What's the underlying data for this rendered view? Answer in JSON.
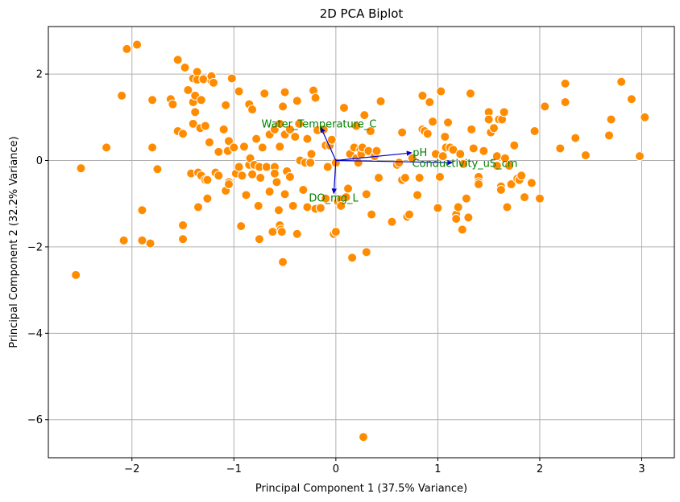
{
  "chart_data": {
    "type": "scatter",
    "title": "2D PCA Biplot",
    "xlabel": "Principal Component 1 (37.5% Variance)",
    "ylabel": "Principal Component 2 (32.2% Variance)",
    "xlim": [
      -2.82,
      3.32
    ],
    "ylim": [
      -6.88,
      3.1
    ],
    "xticks": [
      -2,
      -1,
      0,
      1,
      2,
      3
    ],
    "yticks": [
      -6,
      -4,
      -2,
      0,
      2
    ],
    "grid": true,
    "point_color": "#ff8c00",
    "arrow_color": "#0000cd",
    "label_color": "#008000",
    "loadings": [
      {
        "name": "Water_Temperature_C",
        "x": -0.15,
        "y": 0.78
      },
      {
        "name": "pH",
        "x": 0.75,
        "y": 0.18
      },
      {
        "name": "Conductivity_uS_cm",
        "x": 1.15,
        "y": -0.05
      },
      {
        "name": "DO_mg_L",
        "x": -0.02,
        "y": -0.78
      }
    ],
    "points": [
      [
        -2.55,
        -2.65
      ],
      [
        -2.5,
        -0.18
      ],
      [
        -2.25,
        0.3
      ],
      [
        -2.1,
        1.5
      ],
      [
        -2.08,
        -1.85
      ],
      [
        -2.05,
        2.58
      ],
      [
        -1.95,
        2.68
      ],
      [
        -1.9,
        -1.15
      ],
      [
        -1.9,
        -1.85
      ],
      [
        -1.82,
        -1.92
      ],
      [
        -1.8,
        0.3
      ],
      [
        -1.8,
        1.4
      ],
      [
        -1.75,
        -0.2
      ],
      [
        -1.62,
        1.42
      ],
      [
        -1.6,
        1.3
      ],
      [
        -1.55,
        2.33
      ],
      [
        -1.55,
        0.68
      ],
      [
        -1.5,
        -1.5
      ],
      [
        -1.5,
        -1.82
      ],
      [
        -1.5,
        0.62
      ],
      [
        -1.48,
        2.15
      ],
      [
        -1.45,
        1.63
      ],
      [
        -1.42,
        -0.3
      ],
      [
        -1.4,
        1.9
      ],
      [
        -1.4,
        0.85
      ],
      [
        -1.4,
        1.35
      ],
      [
        -1.38,
        1.5
      ],
      [
        -1.38,
        1.12
      ],
      [
        -1.36,
        2.05
      ],
      [
        -1.36,
        1.87
      ],
      [
        -1.35,
        -0.28
      ],
      [
        -1.35,
        -1.08
      ],
      [
        -1.33,
        0.75
      ],
      [
        -1.32,
        -0.35
      ],
      [
        -1.32,
        1.4
      ],
      [
        -1.3,
        1.88
      ],
      [
        -1.28,
        0.8
      ],
      [
        -1.28,
        -0.45
      ],
      [
        -1.26,
        -0.45
      ],
      [
        -1.26,
        -0.88
      ],
      [
        -1.24,
        0.42
      ],
      [
        -1.22,
        1.84
      ],
      [
        -1.22,
        1.95
      ],
      [
        -1.2,
        1.8
      ],
      [
        -1.18,
        -0.28
      ],
      [
        -1.15,
        0.2
      ],
      [
        -1.15,
        -0.35
      ],
      [
        -1.1,
        0.72
      ],
      [
        -1.08,
        1.28
      ],
      [
        -1.08,
        -0.7
      ],
      [
        -1.06,
        0.22
      ],
      [
        -1.05,
        -0.5
      ],
      [
        -1.05,
        -0.55
      ],
      [
        -1.05,
        0.45
      ],
      [
        -1.02,
        1.9
      ],
      [
        -1,
        0.3
      ],
      [
        -0.98,
        -0.3
      ],
      [
        -0.95,
        -0.15
      ],
      [
        -0.95,
        1.6
      ],
      [
        -0.93,
        -1.52
      ],
      [
        -0.92,
        -0.35
      ],
      [
        -0.9,
        0.32
      ],
      [
        -0.88,
        -0.8
      ],
      [
        -0.85,
        -0.1
      ],
      [
        -0.85,
        1.3
      ],
      [
        -0.84,
        0.05
      ],
      [
        -0.82,
        -0.32
      ],
      [
        -0.82,
        1.18
      ],
      [
        -0.8,
        -0.1
      ],
      [
        -0.78,
        0.5
      ],
      [
        -0.76,
        -1.05
      ],
      [
        -0.75,
        -1.82
      ],
      [
        -0.75,
        -0.15
      ],
      [
        -0.74,
        -0.4
      ],
      [
        -0.72,
        0.3
      ],
      [
        -0.7,
        1.55
      ],
      [
        -0.68,
        -0.15
      ],
      [
        -0.65,
        -0.72
      ],
      [
        -0.65,
        0.6
      ],
      [
        -0.62,
        -1.65
      ],
      [
        -0.6,
        -0.15
      ],
      [
        -0.6,
        -0.3
      ],
      [
        -0.6,
        0.72
      ],
      [
        -0.58,
        -0.5
      ],
      [
        -0.56,
        -1.15
      ],
      [
        -0.55,
        -1.5
      ],
      [
        -0.55,
        0.85
      ],
      [
        -0.55,
        0.32
      ],
      [
        -0.54,
        -1.6
      ],
      [
        -0.53,
        -1.65
      ],
      [
        -0.52,
        -2.35
      ],
      [
        -0.52,
        1.25
      ],
      [
        -0.5,
        1.58
      ],
      [
        -0.5,
        0.6
      ],
      [
        -0.5,
        -0.78
      ],
      [
        -0.48,
        -0.25
      ],
      [
        -0.45,
        0.72
      ],
      [
        -0.45,
        -0.38
      ],
      [
        -0.42,
        -1.05
      ],
      [
        -0.4,
        0.55
      ],
      [
        -0.38,
        -1.7
      ],
      [
        -0.38,
        1.38
      ],
      [
        -0.36,
        0.85
      ],
      [
        -0.35,
        0.0
      ],
      [
        -0.32,
        -0.68
      ],
      [
        -0.3,
        -0.05
      ],
      [
        -0.28,
        0.5
      ],
      [
        -0.28,
        -1.08
      ],
      [
        -0.25,
        -0.05
      ],
      [
        -0.24,
        0.15
      ],
      [
        -0.22,
        1.62
      ],
      [
        -0.2,
        -1.12
      ],
      [
        -0.2,
        1.45
      ],
      [
        -0.18,
        0.7
      ],
      [
        -0.15,
        -1.1
      ],
      [
        -0.12,
        0.72
      ],
      [
        -0.1,
        0.35
      ],
      [
        -0.1,
        -0.88
      ],
      [
        -0.08,
        -0.15
      ],
      [
        -0.06,
        0.35
      ],
      [
        -0.04,
        0.48
      ],
      [
        -0.02,
        -1.7
      ],
      [
        0.0,
        -1.65
      ],
      [
        0.0,
        -0.05
      ],
      [
        0.02,
        -0.95
      ],
      [
        0.05,
        -0.9
      ],
      [
        0.05,
        -1.05
      ],
      [
        0.08,
        1.22
      ],
      [
        0.1,
        -0.85
      ],
      [
        0.12,
        -0.65
      ],
      [
        0.14,
        0.15
      ],
      [
        0.16,
        -2.25
      ],
      [
        0.18,
        0.3
      ],
      [
        0.2,
        0.05
      ],
      [
        0.2,
        0.8
      ],
      [
        0.22,
        -0.05
      ],
      [
        0.24,
        0.25
      ],
      [
        0.25,
        0.15
      ],
      [
        0.26,
        0.3
      ],
      [
        0.27,
        -6.4
      ],
      [
        0.28,
        1.05
      ],
      [
        0.3,
        -0.78
      ],
      [
        0.3,
        -2.12
      ],
      [
        0.32,
        0.22
      ],
      [
        0.34,
        0.68
      ],
      [
        0.35,
        -1.25
      ],
      [
        0.38,
        0.1
      ],
      [
        0.4,
        0.22
      ],
      [
        0.42,
        -0.4
      ],
      [
        0.44,
        1.37
      ],
      [
        0.55,
        -1.42
      ],
      [
        0.6,
        -0.1
      ],
      [
        0.62,
        -0.05
      ],
      [
        0.65,
        -0.45
      ],
      [
        0.65,
        0.65
      ],
      [
        0.68,
        -0.4
      ],
      [
        0.7,
        -1.3
      ],
      [
        0.72,
        -1.25
      ],
      [
        0.75,
        0.05
      ],
      [
        0.8,
        -0.8
      ],
      [
        0.82,
        -0.4
      ],
      [
        0.85,
        1.5
      ],
      [
        0.85,
        0.72
      ],
      [
        0.87,
        0.68
      ],
      [
        0.9,
        0.62
      ],
      [
        0.92,
        1.35
      ],
      [
        0.95,
        0.9
      ],
      [
        0.98,
        0.15
      ],
      [
        1.0,
        -1.1
      ],
      [
        1.02,
        -0.38
      ],
      [
        1.03,
        1.6
      ],
      [
        1.05,
        0.1
      ],
      [
        1.07,
        0.55
      ],
      [
        1.08,
        0.3
      ],
      [
        1.1,
        0.88
      ],
      [
        1.12,
        0.3
      ],
      [
        1.15,
        0.25
      ],
      [
        1.18,
        -1.25
      ],
      [
        1.18,
        -1.35
      ],
      [
        1.2,
        -1.08
      ],
      [
        1.22,
        0.15
      ],
      [
        1.24,
        -1.6
      ],
      [
        1.25,
        -0.08
      ],
      [
        1.28,
        -0.88
      ],
      [
        1.3,
        -1.32
      ],
      [
        1.32,
        1.55
      ],
      [
        1.33,
        0.72
      ],
      [
        1.35,
        0.28
      ],
      [
        1.4,
        -0.38
      ],
      [
        1.4,
        -0.5
      ],
      [
        1.4,
        -0.55
      ],
      [
        1.45,
        0.22
      ],
      [
        1.5,
        1.12
      ],
      [
        1.5,
        0.95
      ],
      [
        1.52,
        0.65
      ],
      [
        1.55,
        0.75
      ],
      [
        1.58,
        0.1
      ],
      [
        1.58,
        -0.12
      ],
      [
        1.6,
        0.95
      ],
      [
        1.62,
        -0.6
      ],
      [
        1.62,
        -0.68
      ],
      [
        1.63,
        0.95
      ],
      [
        1.65,
        1.12
      ],
      [
        1.66,
        0.05
      ],
      [
        1.68,
        -1.08
      ],
      [
        1.7,
        -0.12
      ],
      [
        1.72,
        -0.55
      ],
      [
        1.75,
        0.35
      ],
      [
        1.78,
        -0.42
      ],
      [
        1.8,
        -0.45
      ],
      [
        1.82,
        -0.35
      ],
      [
        1.85,
        -0.85
      ],
      [
        1.92,
        -0.52
      ],
      [
        1.95,
        0.68
      ],
      [
        2.0,
        -0.88
      ],
      [
        2.05,
        1.25
      ],
      [
        2.2,
        0.28
      ],
      [
        2.25,
        1.35
      ],
      [
        2.25,
        1.78
      ],
      [
        2.35,
        0.52
      ],
      [
        2.45,
        0.12
      ],
      [
        2.68,
        0.58
      ],
      [
        2.7,
        0.95
      ],
      [
        2.8,
        1.82
      ],
      [
        2.9,
        1.42
      ],
      [
        2.98,
        0.1
      ],
      [
        3.03,
        1.0
      ]
    ]
  }
}
